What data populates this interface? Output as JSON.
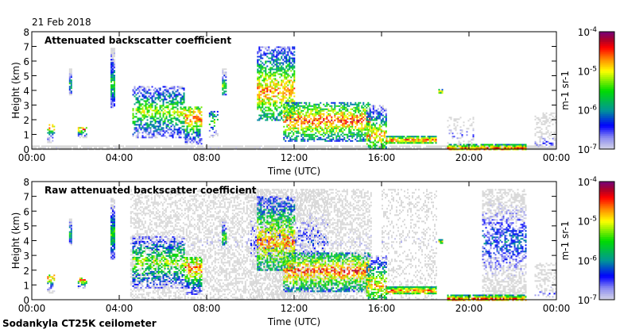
{
  "date_label": "21 Feb 2018",
  "footer": "Sodankyla CT25K ceilometer",
  "chart_data": [
    {
      "type": "heatmap",
      "title": "Attenuated backscatter coefficient",
      "xlabel": "Time (UTC)",
      "ylabel": "Height (km)",
      "xlim": [
        0,
        24
      ],
      "ylim": [
        0,
        8
      ],
      "xticks": [
        "00:00",
        "04:00",
        "08:00",
        "12:00",
        "16:00",
        "20:00",
        "00:00"
      ],
      "yticks": [
        "0",
        "1",
        "2",
        "3",
        "4",
        "5",
        "6",
        "7",
        "8"
      ],
      "colorbar": {
        "label": "m-1 sr-1",
        "scale": "log",
        "range": [
          1e-07,
          0.0001
        ],
        "ticks": [
          "10-7",
          "10-6",
          "10-5",
          "10-4"
        ]
      },
      "features": [
        {
          "t": [
            0,
            24
          ],
          "h": [
            0,
            0.25
          ],
          "peak": -7.1,
          "ph": 0.1,
          "density": 0.9
        },
        {
          "t": [
            0.7,
            1.05
          ],
          "h": [
            0.5,
            1.7
          ],
          "peak": -4.7,
          "ph": 1.55,
          "density": 0.6
        },
        {
          "t": [
            1.7,
            1.8
          ],
          "h": [
            3.7,
            5.5
          ],
          "peak": -5.6,
          "ph": 4.5,
          "density": 0.9
        },
        {
          "t": [
            2.1,
            2.5
          ],
          "h": [
            0.8,
            1.5
          ],
          "peak": -4.6,
          "ph": 1.4,
          "density": 0.7
        },
        {
          "t": [
            3.6,
            3.78
          ],
          "h": [
            2.8,
            6.9
          ],
          "peak": -5.5,
          "ph": 4.5,
          "density": 0.9
        },
        {
          "t": [
            4.6,
            7.0
          ],
          "h": [
            0.8,
            4.3
          ],
          "peak": -5.2,
          "ph": 2.6,
          "density": 0.55
        },
        {
          "t": [
            7.0,
            7.8
          ],
          "h": [
            0.4,
            2.9
          ],
          "peak": -4.6,
          "ph": 2.2,
          "density": 0.6
        },
        {
          "t": [
            8.1,
            8.5
          ],
          "h": [
            0.8,
            2.6
          ],
          "peak": -5.3,
          "ph": 2.0,
          "density": 0.4
        },
        {
          "t": [
            8.7,
            8.9
          ],
          "h": [
            3.7,
            5.5
          ],
          "peak": -5.3,
          "ph": 4.3,
          "density": 0.8
        },
        {
          "t": [
            10.3,
            12.0
          ],
          "h": [
            2.0,
            7.0
          ],
          "peak": -4.7,
          "ph": 4.0,
          "density": 0.6
        },
        {
          "t": [
            11.5,
            15.5
          ],
          "h": [
            0.6,
            3.2
          ],
          "peak": -4.5,
          "ph": 2.0,
          "density": 0.6
        },
        {
          "t": [
            15.3,
            16.2
          ],
          "h": [
            0.0,
            3.0
          ],
          "peak": -4.8,
          "ph": 1.0,
          "density": 0.6
        },
        {
          "t": [
            16.2,
            18.5
          ],
          "h": [
            0.4,
            0.9
          ],
          "peak": -4.5,
          "ph": 0.65,
          "density": 0.9
        },
        {
          "t": [
            18.6,
            18.8
          ],
          "h": [
            3.8,
            4.1
          ],
          "peak": -5.0,
          "ph": 3.95,
          "density": 0.9
        },
        {
          "t": [
            19.0,
            22.6
          ],
          "h": [
            0.0,
            0.35
          ],
          "peak": -4.5,
          "ph": 0.1,
          "density": 0.9
        },
        {
          "t": [
            19.0,
            20.2
          ],
          "h": [
            0.3,
            2.2
          ],
          "peak": -6.6,
          "ph": 1.0,
          "density": 0.25
        },
        {
          "t": [
            23.0,
            24.0
          ],
          "h": [
            0.2,
            2.5
          ],
          "peak": -6.7,
          "ph": 0.5,
          "density": 0.4
        }
      ]
    },
    {
      "type": "heatmap",
      "title": "Raw attenuated backscatter coefficient",
      "xlabel": "Time (UTC)",
      "ylabel": "Height (km)",
      "xlim": [
        0,
        24
      ],
      "ylim": [
        0,
        8
      ],
      "xticks": [
        "00:00",
        "04:00",
        "08:00",
        "12:00",
        "16:00",
        "20:00",
        "00:00"
      ],
      "yticks": [
        "0",
        "1",
        "2",
        "3",
        "4",
        "5",
        "6",
        "7",
        "8"
      ],
      "colorbar": {
        "label": "m-1 sr-1",
        "scale": "log",
        "range": [
          1e-07,
          0.0001
        ],
        "ticks": [
          "10-7",
          "10-6",
          "10-5",
          "10-4"
        ]
      },
      "features": [
        {
          "t": [
            4.5,
            15.5
          ],
          "h": [
            0,
            7.5
          ],
          "peak": -7.1,
          "ph": 4,
          "density": 0.45
        },
        {
          "t": [
            10.0,
            13.5
          ],
          "h": [
            0,
            7.5
          ],
          "peak": -6.5,
          "ph": 4,
          "density": 0.35
        },
        {
          "t": [
            20.6,
            22.6
          ],
          "h": [
            0,
            7.5
          ],
          "peak": -6.2,
          "ph": 4,
          "density": 0.55
        },
        {
          "t": [
            16.0,
            18.5
          ],
          "h": [
            0,
            7.5
          ],
          "peak": -7.1,
          "ph": 4,
          "density": 0.25
        },
        {
          "t": [
            0.7,
            1.05
          ],
          "h": [
            0.5,
            1.7
          ],
          "peak": -4.7,
          "ph": 1.55,
          "density": 0.6
        },
        {
          "t": [
            1.7,
            1.8
          ],
          "h": [
            3.7,
            5.5
          ],
          "peak": -5.6,
          "ph": 4.5,
          "density": 0.9
        },
        {
          "t": [
            2.1,
            2.5
          ],
          "h": [
            0.8,
            1.5
          ],
          "peak": -4.6,
          "ph": 1.4,
          "density": 0.7
        },
        {
          "t": [
            3.6,
            3.78
          ],
          "h": [
            2.8,
            6.9
          ],
          "peak": -5.5,
          "ph": 4.5,
          "density": 0.9
        },
        {
          "t": [
            4.6,
            7.0
          ],
          "h": [
            0.8,
            4.3
          ],
          "peak": -5.2,
          "ph": 2.6,
          "density": 0.55
        },
        {
          "t": [
            7.0,
            7.8
          ],
          "h": [
            0.4,
            2.9
          ],
          "peak": -4.6,
          "ph": 2.2,
          "density": 0.6
        },
        {
          "t": [
            8.7,
            8.9
          ],
          "h": [
            3.7,
            5.5
          ],
          "peak": -5.3,
          "ph": 4.3,
          "density": 0.8
        },
        {
          "t": [
            10.3,
            12.0
          ],
          "h": [
            2.0,
            7.0
          ],
          "peak": -4.7,
          "ph": 4.0,
          "density": 0.6
        },
        {
          "t": [
            11.5,
            15.5
          ],
          "h": [
            0.6,
            3.2
          ],
          "peak": -4.5,
          "ph": 2.0,
          "density": 0.6
        },
        {
          "t": [
            15.3,
            16.2
          ],
          "h": [
            0.0,
            3.0
          ],
          "peak": -4.8,
          "ph": 1.0,
          "density": 0.6
        },
        {
          "t": [
            16.2,
            18.5
          ],
          "h": [
            0.4,
            0.9
          ],
          "peak": -4.5,
          "ph": 0.65,
          "density": 0.9
        },
        {
          "t": [
            18.6,
            18.8
          ],
          "h": [
            3.8,
            4.1
          ],
          "peak": -5.0,
          "ph": 3.95,
          "density": 0.9
        },
        {
          "t": [
            19.0,
            22.6
          ],
          "h": [
            0.0,
            0.35
          ],
          "peak": -4.5,
          "ph": 0.1,
          "density": 0.9
        },
        {
          "t": [
            23.0,
            24.0
          ],
          "h": [
            0.2,
            2.5
          ],
          "peak": -6.7,
          "ph": 0.5,
          "density": 0.4
        }
      ]
    }
  ]
}
